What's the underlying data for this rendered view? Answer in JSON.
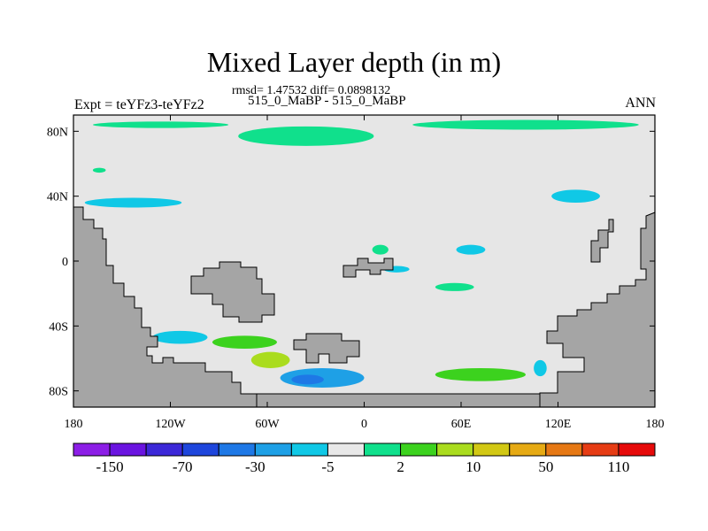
{
  "chart_data": {
    "type": "heatmap",
    "title": "Mixed Layer depth (in m)",
    "stats_line": "rmsd= 1.47532 diff= 0.0898132",
    "subtitle": "515_0_MaBP - 515_0_MaBP",
    "left_label": "Expt = teYFz3-teYFz2",
    "right_label": "ANN",
    "x_ticks": [
      "180",
      "120W",
      "60W",
      "0",
      "60E",
      "120E",
      "180"
    ],
    "x_tick_values": [
      -180,
      -120,
      -60,
      0,
      60,
      120,
      180
    ],
    "y_ticks": [
      "80N",
      "40N",
      "0",
      "40S",
      "80S"
    ],
    "y_tick_values": [
      80,
      40,
      0,
      -40,
      -80
    ],
    "xlim": [
      -180,
      180
    ],
    "ylim": [
      -90,
      90
    ],
    "colorbar": {
      "colors": [
        "#8c1ee6",
        "#6a14e0",
        "#3c28d8",
        "#1e46dc",
        "#1e78e6",
        "#1ea0e6",
        "#10c8e6",
        "#e8e8e8",
        "#10e08c",
        "#3cd21e",
        "#aadc1e",
        "#d2c814",
        "#e6aa14",
        "#e67814",
        "#e63c14",
        "#e60a0a"
      ],
      "labels": [
        "-150",
        "-70",
        "-30",
        "-5",
        "2",
        "10",
        "50",
        "110"
      ]
    },
    "anomaly_patches": [
      {
        "lon": -126,
        "lat": 84,
        "rx": 42,
        "ry": 2,
        "value": 5
      },
      {
        "lon": -36,
        "lat": 77,
        "rx": 42,
        "ry": 6,
        "value": 5
      },
      {
        "lon": 100,
        "lat": 84,
        "rx": 70,
        "ry": 3,
        "value": 5
      },
      {
        "lon": -164,
        "lat": 56,
        "rx": 4,
        "ry": 1.5,
        "value": 5
      },
      {
        "lon": 131,
        "lat": 40,
        "rx": 15,
        "ry": 4,
        "value": -5
      },
      {
        "lon": -143,
        "lat": 36,
        "rx": 30,
        "ry": 3,
        "value": -5
      },
      {
        "lon": 66,
        "lat": 7,
        "rx": 9,
        "ry": 3,
        "value": -5
      },
      {
        "lon": 10,
        "lat": 7,
        "rx": 5,
        "ry": 3,
        "value": 5
      },
      {
        "lon": 20,
        "lat": -5,
        "rx": 8,
        "ry": 2,
        "value": -5
      },
      {
        "lon": 56,
        "lat": -16,
        "rx": 12,
        "ry": 2.5,
        "value": 5
      },
      {
        "lon": -74,
        "lat": -50,
        "rx": 20,
        "ry": 4,
        "value": 10
      },
      {
        "lon": -58,
        "lat": -61,
        "rx": 12,
        "ry": 5,
        "value": 20
      },
      {
        "lon": -26,
        "lat": -72,
        "rx": 26,
        "ry": 6,
        "value": -15
      },
      {
        "lon": -35,
        "lat": -73,
        "rx": 10,
        "ry": 3,
        "value": -40
      },
      {
        "lon": 72,
        "lat": -70,
        "rx": 28,
        "ry": 4,
        "value": 10
      },
      {
        "lon": 109,
        "lat": -66,
        "rx": 4,
        "ry": 5,
        "value": -5
      },
      {
        "lon": -114,
        "lat": -47,
        "rx": 17,
        "ry": 4,
        "value": -5
      }
    ]
  }
}
